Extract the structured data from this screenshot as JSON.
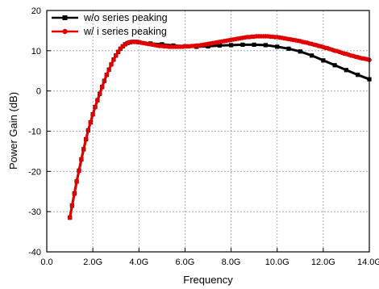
{
  "chart_data": {
    "type": "line",
    "title": "",
    "xlabel": "Frequency",
    "ylabel": "Power Gain (dB)",
    "xlim": [
      0,
      14
    ],
    "ylim": [
      -40,
      20
    ],
    "xticks": [
      0,
      2,
      4,
      6,
      8,
      10,
      12,
      14
    ],
    "xtick_labels": [
      "0.0",
      "2.0G",
      "4.0G",
      "6.0G",
      "8.0G",
      "10.0G",
      "12.0G",
      "14.0G"
    ],
    "yticks": [
      -40,
      -30,
      -20,
      -10,
      0,
      10,
      20
    ],
    "ytick_labels": [
      "-40",
      "-30",
      "-20",
      "-10",
      "0",
      "10",
      "20"
    ],
    "grid": true,
    "legend": "top-left",
    "series": [
      {
        "name": "w/o series peaking",
        "color": "#000000",
        "marker": "square",
        "x": [
          1.0,
          1.1,
          1.2,
          1.3,
          1.4,
          1.5,
          1.6,
          1.7,
          1.8,
          1.9,
          2.0,
          2.1,
          2.2,
          2.3,
          2.4,
          2.5,
          2.6,
          2.7,
          2.8,
          2.9,
          3.0,
          3.1,
          3.2,
          3.3,
          3.4,
          3.5,
          3.6,
          3.7,
          3.8,
          3.9,
          4.0,
          4.5,
          5.0,
          5.5,
          6.0,
          6.5,
          7.0,
          7.5,
          8.0,
          8.5,
          9.0,
          9.5,
          10.0,
          10.5,
          11.0,
          11.5,
          12.0,
          12.5,
          13.0,
          13.5,
          14.0
        ],
        "values": [
          -31.5,
          -28.5,
          -25.5,
          -22.5,
          -19.8,
          -17.0,
          -14.5,
          -12.0,
          -9.8,
          -7.8,
          -5.8,
          -4.0,
          -2.3,
          -0.7,
          1.0,
          2.5,
          4.0,
          5.3,
          6.6,
          7.8,
          8.8,
          9.7,
          10.5,
          11.1,
          11.6,
          11.9,
          12.1,
          12.2,
          12.2,
          12.2,
          12.1,
          11.8,
          11.6,
          11.3,
          11.1,
          11.0,
          11.1,
          11.3,
          11.4,
          11.5,
          11.5,
          11.4,
          11.0,
          10.5,
          9.8,
          8.8,
          7.6,
          6.4,
          5.2,
          4.0,
          2.9
        ]
      },
      {
        "name": "w/ i series peaking",
        "color": "#e00000",
        "marker": "circle",
        "x": [
          1.0,
          1.1,
          1.2,
          1.3,
          1.4,
          1.5,
          1.6,
          1.7,
          1.8,
          1.9,
          2.0,
          2.1,
          2.2,
          2.3,
          2.4,
          2.5,
          2.6,
          2.7,
          2.8,
          2.9,
          3.0,
          3.1,
          3.2,
          3.3,
          3.4,
          3.5,
          3.6,
          3.7,
          3.8,
          3.9,
          4.0,
          4.1,
          4.2,
          4.3,
          4.4,
          4.5,
          4.6,
          4.7,
          4.8,
          4.9,
          5.0,
          5.1,
          5.2,
          5.3,
          5.4,
          5.5,
          5.6,
          5.7,
          5.8,
          5.9,
          6.0,
          6.1,
          6.2,
          6.3,
          6.4,
          6.5,
          6.6,
          6.7,
          6.8,
          6.9,
          7.0,
          7.1,
          7.2,
          7.3,
          7.4,
          7.5,
          7.6,
          7.7,
          7.8,
          7.9,
          8.0,
          8.1,
          8.2,
          8.3,
          8.4,
          8.5,
          8.6,
          8.7,
          8.8,
          8.9,
          9.0,
          9.1,
          9.2,
          9.3,
          9.4,
          9.5,
          9.6,
          9.7,
          9.8,
          9.9,
          10.0,
          10.1,
          10.2,
          10.3,
          10.4,
          10.5,
          10.6,
          10.7,
          10.8,
          10.9,
          11.0,
          11.1,
          11.2,
          11.3,
          11.4,
          11.5,
          11.6,
          11.7,
          11.8,
          11.9,
          12.0,
          12.1,
          12.2,
          12.3,
          12.4,
          12.5,
          12.6,
          12.7,
          12.8,
          12.9,
          13.0,
          13.1,
          13.2,
          13.3,
          13.4,
          13.5,
          13.6,
          13.7,
          13.8,
          13.9,
          14.0
        ],
        "values": [
          -31.5,
          -28.5,
          -25.5,
          -22.5,
          -19.8,
          -17.0,
          -14.5,
          -12.0,
          -9.8,
          -7.8,
          -5.8,
          -4.0,
          -2.3,
          -0.7,
          1.0,
          2.5,
          4.0,
          5.3,
          6.6,
          7.8,
          8.8,
          9.7,
          10.5,
          11.1,
          11.6,
          11.9,
          12.1,
          12.2,
          12.2,
          12.2,
          12.1,
          12.0,
          11.9,
          11.8,
          11.7,
          11.6,
          11.5,
          11.4,
          11.3,
          11.2,
          11.2,
          11.1,
          11.1,
          11.0,
          11.0,
          11.0,
          11.0,
          11.0,
          11.0,
          11.0,
          11.1,
          11.1,
          11.1,
          11.2,
          11.2,
          11.3,
          11.3,
          11.4,
          11.5,
          11.6,
          11.7,
          11.8,
          11.9,
          12.0,
          12.1,
          12.2,
          12.3,
          12.4,
          12.5,
          12.6,
          12.7,
          12.8,
          12.9,
          13.0,
          13.1,
          13.2,
          13.3,
          13.4,
          13.4,
          13.5,
          13.5,
          13.6,
          13.6,
          13.6,
          13.6,
          13.6,
          13.6,
          13.5,
          13.5,
          13.4,
          13.4,
          13.3,
          13.2,
          13.1,
          13.0,
          12.9,
          12.8,
          12.7,
          12.6,
          12.5,
          12.4,
          12.2,
          12.1,
          12.0,
          11.8,
          11.7,
          11.5,
          11.4,
          11.2,
          11.1,
          10.9,
          10.7,
          10.6,
          10.4,
          10.2,
          10.0,
          9.9,
          9.7,
          9.5,
          9.3,
          9.2,
          9.0,
          8.8,
          8.7,
          8.5,
          8.4,
          8.2,
          8.1,
          8.0,
          7.9,
          7.7
        ]
      }
    ]
  }
}
